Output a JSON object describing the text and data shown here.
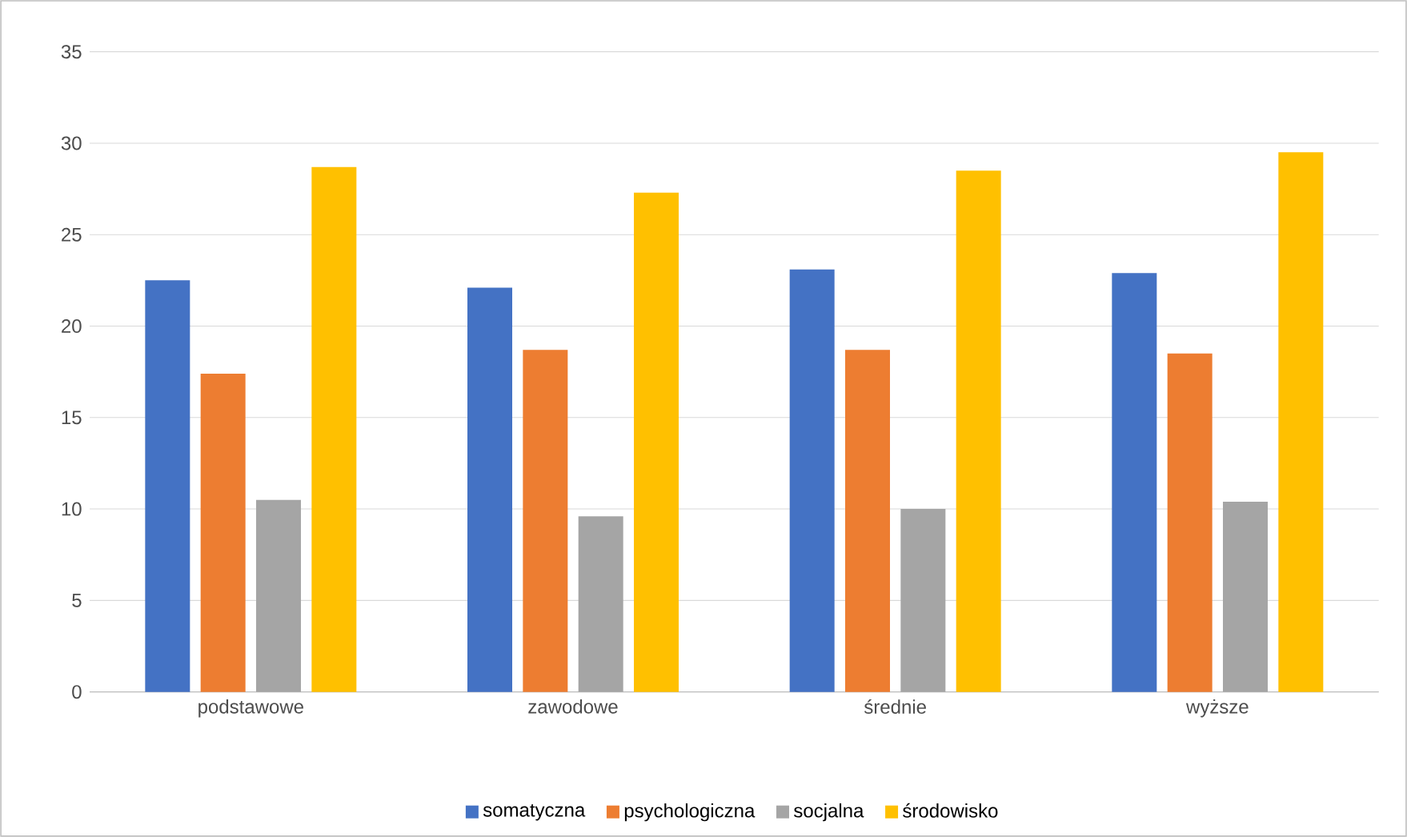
{
  "chart_data": {
    "type": "bar",
    "categories": [
      "podstawowe",
      "zawodowe",
      "średnie",
      "wyższe"
    ],
    "series": [
      {
        "name": "somatyczna",
        "color": "#4472c4",
        "values": [
          22.5,
          22.1,
          23.1,
          22.9
        ]
      },
      {
        "name": "psychologiczna",
        "color": "#ed7d31",
        "values": [
          17.4,
          18.7,
          18.7,
          18.5
        ]
      },
      {
        "name": "socjalna",
        "color": "#a5a5a5",
        "values": [
          10.5,
          9.6,
          10.0,
          10.4
        ]
      },
      {
        "name": "środowisko",
        "color": "#ffc000",
        "values": [
          28.7,
          27.3,
          28.5,
          29.5
        ]
      }
    ],
    "ylim": [
      0,
      35
    ],
    "yticks": [
      0,
      5,
      10,
      15,
      20,
      25,
      30,
      35
    ],
    "grid": "y",
    "legend": "bottom"
  }
}
